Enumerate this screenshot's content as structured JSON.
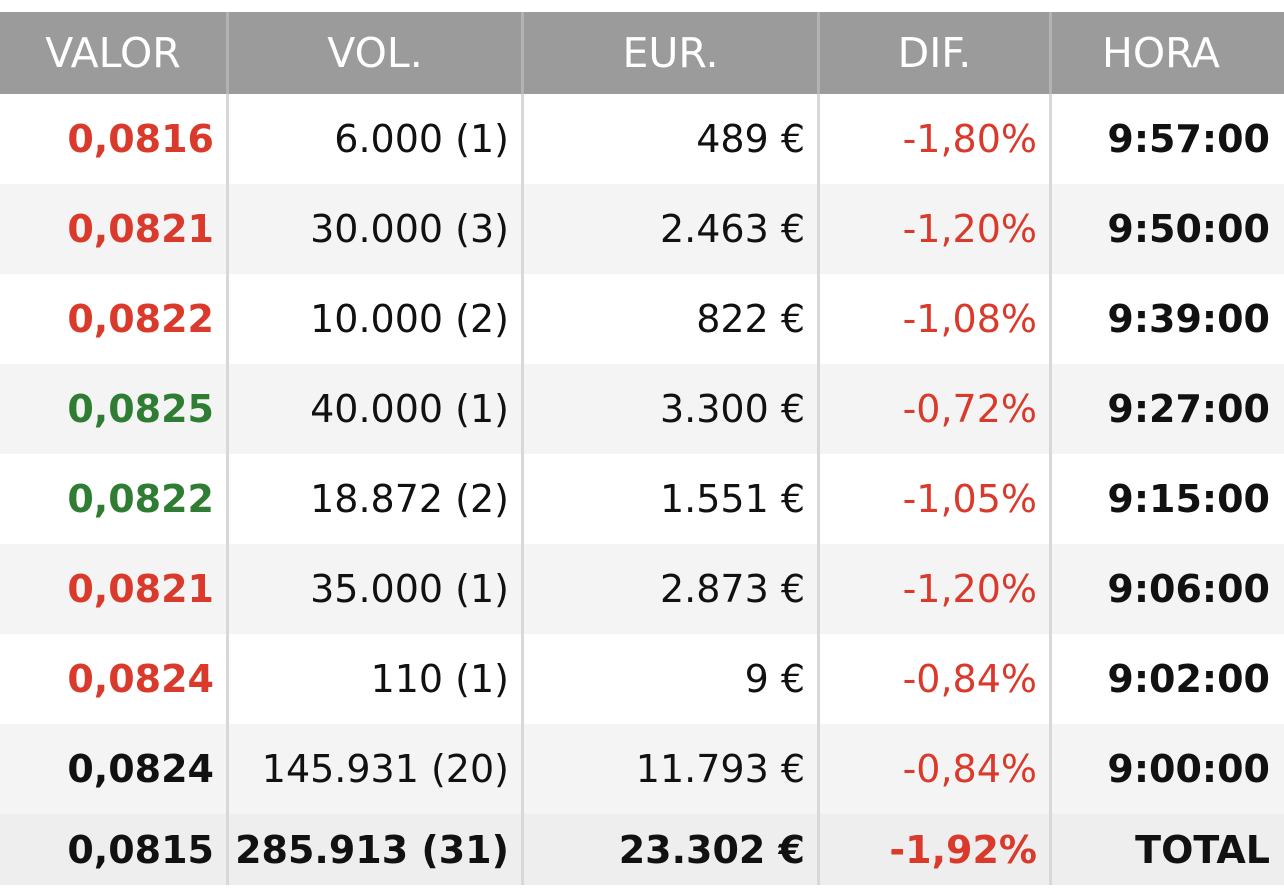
{
  "colors": {
    "header_bg": "#9b9b9b",
    "up": "#2e7d32",
    "down": "#d93a2b",
    "neutral": "#111111"
  },
  "headers": [
    "VALOR",
    "VOL.",
    "EUR.",
    "DIF.",
    "HORA"
  ],
  "rows": [
    {
      "valor": "0,0816",
      "valor_color": "red",
      "vol": "6.000 (1)",
      "eur": "489 €",
      "dif": "-1,80%",
      "hora": "9:57:00"
    },
    {
      "valor": "0,0821",
      "valor_color": "red",
      "vol": "30.000 (3)",
      "eur": "2.463 €",
      "dif": "-1,20%",
      "hora": "9:50:00"
    },
    {
      "valor": "0,0822",
      "valor_color": "red",
      "vol": "10.000 (2)",
      "eur": "822 €",
      "dif": "-1,08%",
      "hora": "9:39:00"
    },
    {
      "valor": "0,0825",
      "valor_color": "green",
      "vol": "40.000 (1)",
      "eur": "3.300 €",
      "dif": "-0,72%",
      "hora": "9:27:00"
    },
    {
      "valor": "0,0822",
      "valor_color": "green",
      "vol": "18.872 (2)",
      "eur": "1.551 €",
      "dif": "-1,05%",
      "hora": "9:15:00"
    },
    {
      "valor": "0,0821",
      "valor_color": "red",
      "vol": "35.000 (1)",
      "eur": "2.873 €",
      "dif": "-1,20%",
      "hora": "9:06:00"
    },
    {
      "valor": "0,0824",
      "valor_color": "red",
      "vol": "110 (1)",
      "eur": "9 €",
      "dif": "-0,84%",
      "hora": "9:02:00"
    },
    {
      "valor": "0,0824",
      "valor_color": "black",
      "vol": "145.931 (20)",
      "eur": "11.793 €",
      "dif": "-0,84%",
      "hora": "9:00:00"
    }
  ],
  "total": {
    "valor": "0,0815",
    "vol": "285.913 (31)",
    "eur": "23.302 €",
    "dif": "-1,92%",
    "hora": "TOTAL"
  }
}
